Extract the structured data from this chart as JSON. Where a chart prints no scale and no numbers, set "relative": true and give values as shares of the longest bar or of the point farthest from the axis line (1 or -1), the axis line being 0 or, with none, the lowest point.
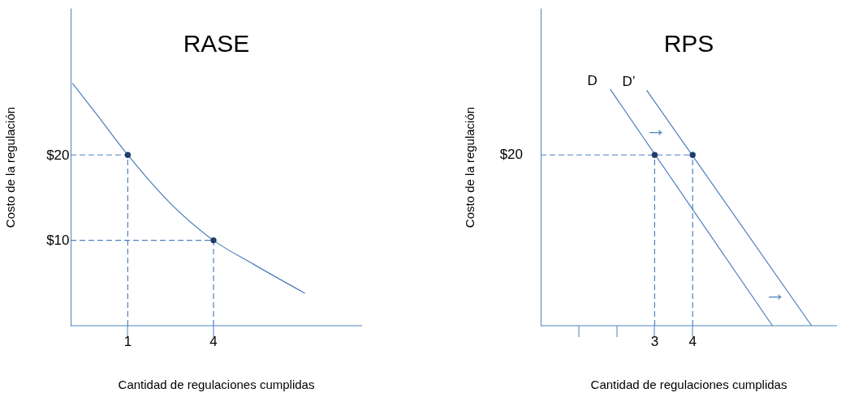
{
  "chart_data": [
    {
      "type": "line",
      "title": "RASE",
      "xlabel": "Cantidad de regulaciones cumplidas",
      "ylabel": "Costo de la regulación",
      "xlim": [
        -1,
        9.2
      ],
      "ylim": [
        0,
        37.2
      ],
      "xticks": [
        1,
        4
      ],
      "yticks": [
        {
          "value": 10,
          "label": "$10"
        },
        {
          "value": 20,
          "label": "$20"
        }
      ],
      "grid": false,
      "series": [
        {
          "color": "#4a7ebb",
          "x": [
            -0.94,
            -0.1,
            1,
            2.5,
            4,
            5.4,
            7.2
          ],
          "values": [
            28.4,
            24.8,
            20,
            14.3,
            10,
            7.2,
            3.8
          ]
        },
        {
          "color": "#4f81bd",
          "line_style": "dashed",
          "x": [
            -1,
            1
          ],
          "values": [
            20,
            20
          ]
        },
        {
          "color": "#4f81bd",
          "line_style": "dashed",
          "x": [
            1,
            1
          ],
          "values": [
            0,
            20
          ]
        },
        {
          "color": "#4f81bd",
          "line_style": "dashed",
          "x": [
            -1,
            4
          ],
          "values": [
            10,
            10
          ]
        },
        {
          "color": "#4f81bd",
          "line_style": "dashed",
          "x": [
            4,
            4
          ],
          "values": [
            0,
            10
          ]
        },
        {
          "type": "scatter",
          "color": "#1f3d6b",
          "marker": "circle",
          "x": [
            1,
            4
          ],
          "values": [
            20,
            10
          ]
        }
      ]
    },
    {
      "type": "line",
      "title": "RPS",
      "xlabel": "Cantidad de regulaciones cumplidas",
      "ylabel": "Costo de la regulación",
      "relative": true,
      "xlim": [
        0,
        7.8
      ],
      "xticks": [
        {
          "value": 1,
          "label": null
        },
        {
          "value": 2,
          "label": null
        },
        3,
        4
      ],
      "grid": false,
      "series": [
        {
          "name": "D",
          "color": "#4a7ebb",
          "x": [
            1.83,
            6.1
          ],
          "values": [
            1,
            0
          ]
        },
        {
          "name": "D’",
          "color": "#4a7ebb",
          "x": [
            2.79,
            7.13
          ],
          "values": [
            0.996,
            0
          ]
        },
        {
          "color": "#4f81bd",
          "line_style": "dashed",
          "x": [
            0,
            4
          ],
          "values": [
            0.722,
            0.722
          ]
        },
        {
          "color": "#4f81bd",
          "line_style": "dashed",
          "x": [
            3,
            3
          ],
          "values": [
            0,
            0.722
          ]
        },
        {
          "color": "#4f81bd",
          "line_style": "dashed",
          "x": [
            4,
            4
          ],
          "values": [
            0,
            0.722
          ]
        },
        {
          "type": "scatter",
          "color": "#1f3d6b",
          "marker": "circle",
          "x": [
            3,
            4
          ],
          "values": [
            0.722,
            0.722
          ]
        }
      ],
      "annotations": [
        "$20",
        "→",
        "→"
      ]
    }
  ]
}
